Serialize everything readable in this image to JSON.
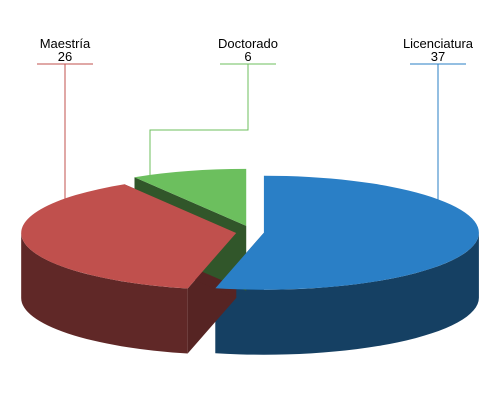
{
  "chart_data": {
    "type": "pie3d",
    "categories": [
      "Licenciatura",
      "Maestría",
      "Doctorado"
    ],
    "values": [
      37,
      26,
      6
    ],
    "colors": [
      "#2a7fc6",
      "#c0504d",
      "#6cbf5e"
    ]
  }
}
